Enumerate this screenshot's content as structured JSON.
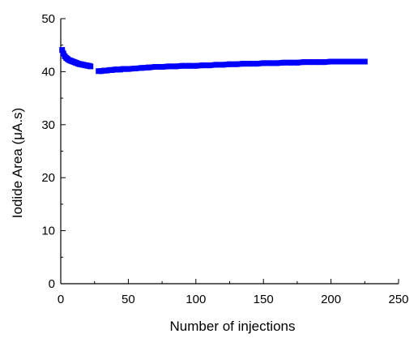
{
  "chart_data": {
    "type": "scatter",
    "title": "",
    "xlabel": "Number of injections",
    "ylabel": "Iodide Area (μA.s)",
    "xlim": [
      0,
      250
    ],
    "ylim": [
      0,
      50
    ],
    "xticks": [
      0,
      50,
      100,
      150,
      200,
      250
    ],
    "yticks": [
      0,
      10,
      20,
      30,
      40,
      50
    ],
    "grid": false,
    "legend": "none",
    "series": [
      {
        "color": "#0000ff",
        "marker": "square",
        "segments": [
          {
            "x": [
              1,
              2,
              3,
              4,
              5,
              6,
              7,
              8,
              9,
              10,
              11,
              12,
              13,
              14,
              15,
              16,
              17,
              18,
              19,
              20,
              21,
              22
            ],
            "y": [
              44.1,
              43.4,
              42.9,
              42.6,
              42.4,
              42.2,
              42.1,
              42.0,
              41.9,
              41.8,
              41.7,
              41.6,
              41.5,
              41.4,
              41.4,
              41.3,
              41.3,
              41.2,
              41.2,
              41.1,
              41.1,
              41.0
            ]
          },
          {
            "x": [
              28,
              30,
              32,
              34,
              36,
              38,
              40,
              42,
              44,
              46,
              48,
              50,
              55,
              60,
              65,
              70,
              75,
              80,
              85,
              90,
              95,
              100,
              105,
              110,
              115,
              120,
              125,
              130,
              135,
              140,
              145,
              150,
              155,
              160,
              165,
              170,
              175,
              180,
              185,
              190,
              195,
              200,
              205,
              210,
              215,
              220,
              225
            ],
            "y": [
              40.1,
              40.1,
              40.2,
              40.2,
              40.3,
              40.3,
              40.4,
              40.4,
              40.4,
              40.5,
              40.5,
              40.5,
              40.6,
              40.7,
              40.8,
              40.9,
              40.9,
              41.0,
              41.0,
              41.1,
              41.1,
              41.1,
              41.2,
              41.2,
              41.3,
              41.3,
              41.4,
              41.4,
              41.5,
              41.5,
              41.5,
              41.6,
              41.6,
              41.6,
              41.7,
              41.7,
              41.7,
              41.8,
              41.8,
              41.8,
              41.8,
              41.9,
              41.9,
              41.9,
              41.9,
              41.9,
              41.9
            ]
          }
        ]
      }
    ]
  }
}
